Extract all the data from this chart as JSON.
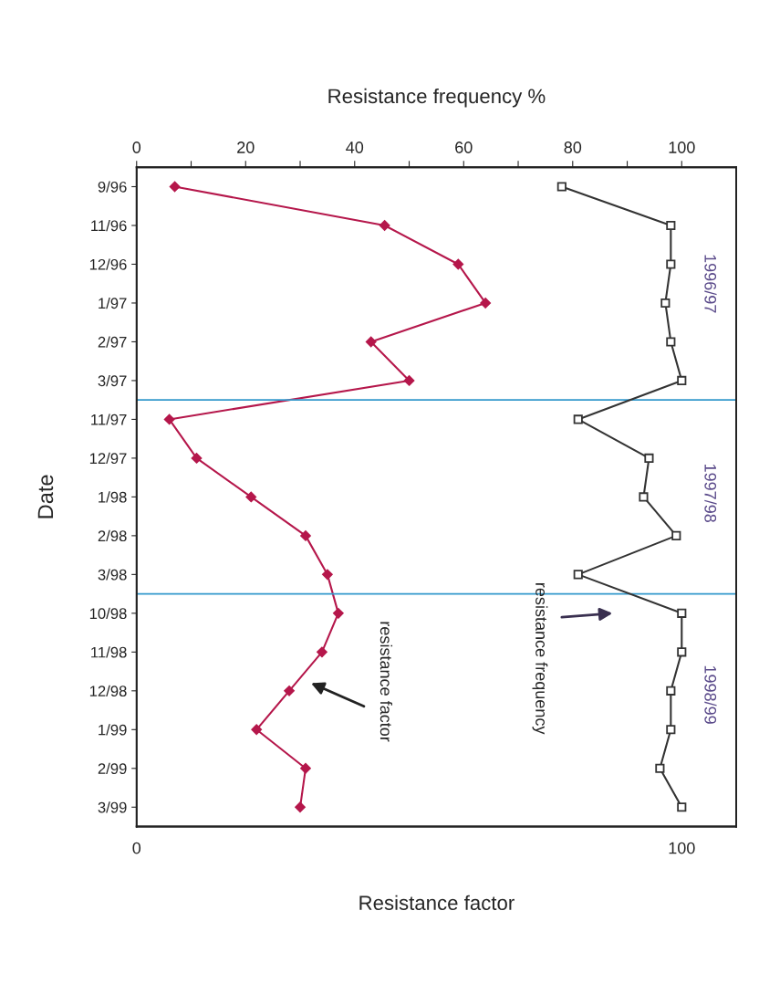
{
  "chart_data": {
    "type": "line",
    "orientation": "horizontal",
    "ylabel": "Date",
    "xlabel": "Resistance factor",
    "x2label": "Resistance frequency %",
    "categories": [
      "9/96",
      "11/96",
      "12/96",
      "1/97",
      "2/97",
      "3/97",
      "11/97",
      "12/97",
      "1/98",
      "2/98",
      "3/98",
      "10/98",
      "11/98",
      "12/98",
      "1/99",
      "2/99",
      "3/99"
    ],
    "series": [
      {
        "color": "#b5174b",
        "marker": "diamond",
        "values": [
          7,
          45.5,
          59,
          64,
          43,
          50,
          6,
          11,
          21,
          31,
          35,
          37,
          34,
          28,
          22,
          31,
          30
        ]
      },
      {
        "color": "#333333",
        "marker": "square",
        "axis": "x2",
        "values": [
          78,
          98,
          98,
          97,
          98,
          100,
          81,
          94,
          93,
          99,
          81,
          100,
          100,
          98,
          98,
          96,
          100
        ]
      }
    ],
    "xlim": [
      0,
      110
    ],
    "xticks": [
      0,
      100
    ],
    "x2lim": [
      0,
      110
    ],
    "x2ticks": [
      0,
      {
        "value": 10,
        "label": null
      },
      20,
      {
        "value": 30,
        "label": null
      },
      40,
      {
        "value": 50,
        "label": null
      },
      60,
      {
        "value": 70,
        "label": null
      },
      80,
      {
        "value": 90,
        "label": null
      },
      100
    ],
    "annotations": [
      "1996/97",
      "1997/98",
      "1998/99",
      "resistance frequency",
      "resistance factor"
    ],
    "grid": false,
    "legend": false
  }
}
